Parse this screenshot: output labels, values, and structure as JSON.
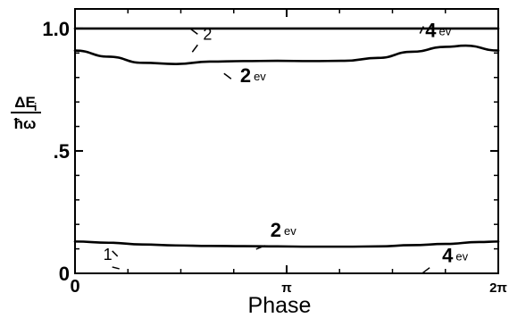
{
  "chart_data": {
    "type": "line",
    "title": "",
    "xlabel": "Phase",
    "ylabel_top": "ΔE",
    "ylabel_sub": "i",
    "ylabel_bottom": "ħω",
    "xlim": [
      0,
      6.2832
    ],
    "ylim": [
      0,
      1.08
    ],
    "x_ticks": [
      {
        "value": 0,
        "label": "0"
      },
      {
        "value": 3.1416,
        "label": "π"
      },
      {
        "value": 6.2832,
        "label": "2π"
      }
    ],
    "y_ticks": [
      {
        "value": 0,
        "label": "0"
      },
      {
        "value": 0.5,
        "label": ".5"
      },
      {
        "value": 1.0,
        "label": "1.0"
      }
    ],
    "grid": false,
    "series": [
      {
        "name": "2",
        "x": [
          0,
          6.2832
        ],
        "y": [
          1.0,
          1.0
        ]
      },
      {
        "name": "2ev",
        "x": [
          0,
          0.5,
          1.0,
          1.5,
          2.0,
          2.5,
          3.0,
          3.5,
          4.0,
          4.5,
          5.0,
          5.5,
          5.8,
          6.2832
        ],
        "y": [
          0.91,
          0.885,
          0.86,
          0.855,
          0.865,
          0.867,
          0.868,
          0.867,
          0.868,
          0.88,
          0.905,
          0.925,
          0.93,
          0.91
        ]
      },
      {
        "name": "2ev",
        "x": [
          0,
          0.5,
          1.0,
          1.5,
          2.0,
          2.5,
          3.0,
          3.5,
          4.0,
          4.5,
          5.0,
          5.5,
          6.0,
          6.2832
        ],
        "y": [
          0.13,
          0.125,
          0.118,
          0.114,
          0.112,
          0.111,
          0.11,
          0.109,
          0.109,
          0.11,
          0.115,
          0.12,
          0.128,
          0.13
        ]
      },
      {
        "name": "1",
        "x": [
          0,
          6.2832
        ],
        "y": [
          0,
          0
        ]
      }
    ],
    "annotations": [
      {
        "text": "2",
        "sub": "",
        "x": 1.9,
        "y": 0.955,
        "big": false
      },
      {
        "text": "2",
        "sub": "ev",
        "x": 2.45,
        "y": 0.78,
        "big": true
      },
      {
        "text": "4",
        "sub": "ev",
        "x": 5.2,
        "y": 0.965,
        "big": true
      },
      {
        "text": "2",
        "sub": "ev",
        "x": 2.9,
        "y": 0.15,
        "big": true
      },
      {
        "text": "1",
        "sub": "",
        "x": 0.42,
        "y": 0.055,
        "big": false
      },
      {
        "text": "4",
        "sub": "ev",
        "x": 5.45,
        "y": 0.045,
        "big": true
      }
    ]
  }
}
